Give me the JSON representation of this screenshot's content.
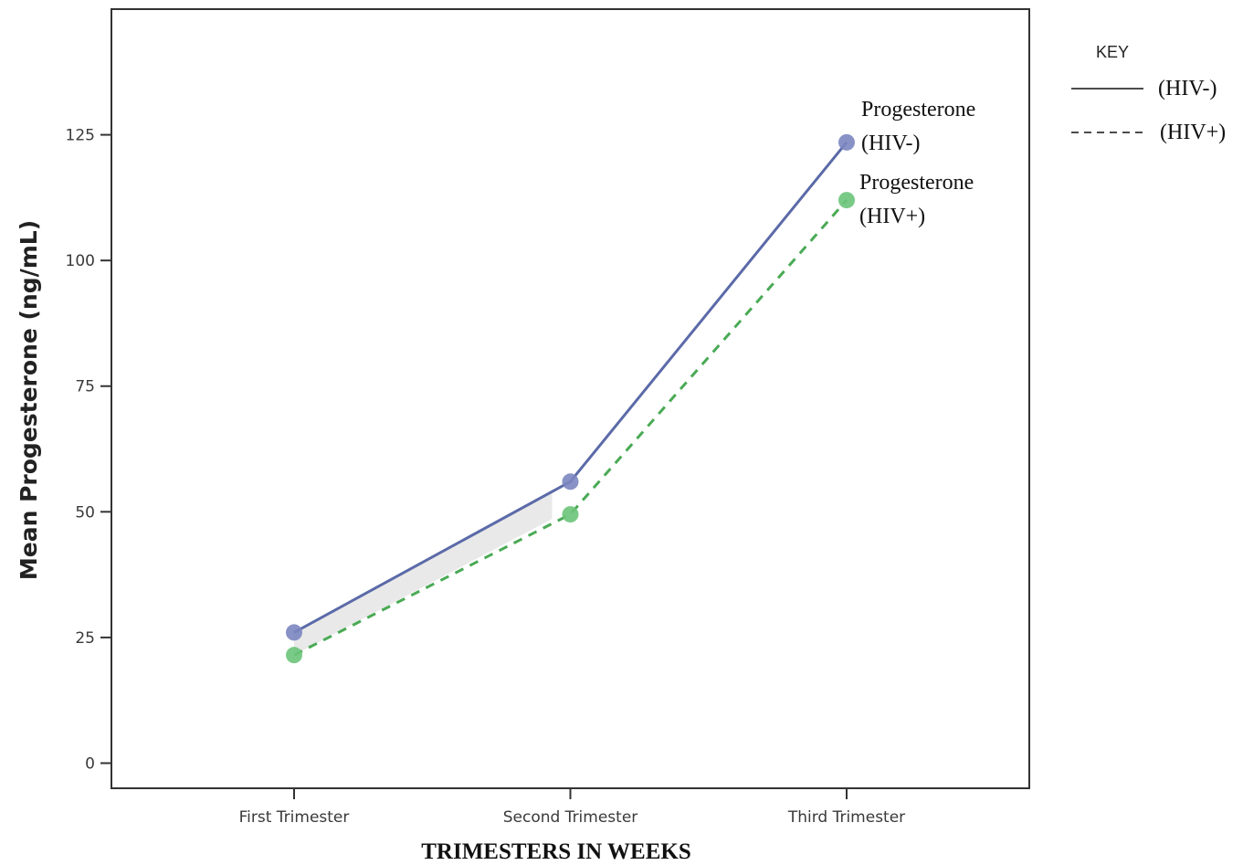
{
  "chart_data": {
    "type": "line",
    "categories": [
      "First Trimester",
      "Second Trimester",
      "Third Trimester"
    ],
    "series": [
      {
        "key": "hiv_neg",
        "legend_label": "(HIV-)",
        "annotation": [
          "Progesterone",
          "(HIV-)"
        ],
        "values": [
          26,
          56,
          123.5
        ],
        "color": "#5b6aa8",
        "point_color": "#7b86c0",
        "line_style": "solid"
      },
      {
        "key": "hiv_pos",
        "legend_label": "(HIV+)",
        "annotation": [
          "Progesterone",
          "(HIV+)"
        ],
        "values": [
          21.5,
          49.5,
          112
        ],
        "color": "#4aaa55",
        "point_color": "#6cc47a",
        "line_style": "dashed"
      }
    ],
    "xlabel": "TRIMESTERS IN WEEKS",
    "ylabel": "Mean Progesterone (ng/mL)",
    "ylim": [
      -5,
      150
    ],
    "yticks": [
      0,
      25,
      50,
      75,
      100,
      125
    ],
    "grid": false,
    "legend": {
      "title": "KEY",
      "placement": "outside-top-right"
    }
  }
}
